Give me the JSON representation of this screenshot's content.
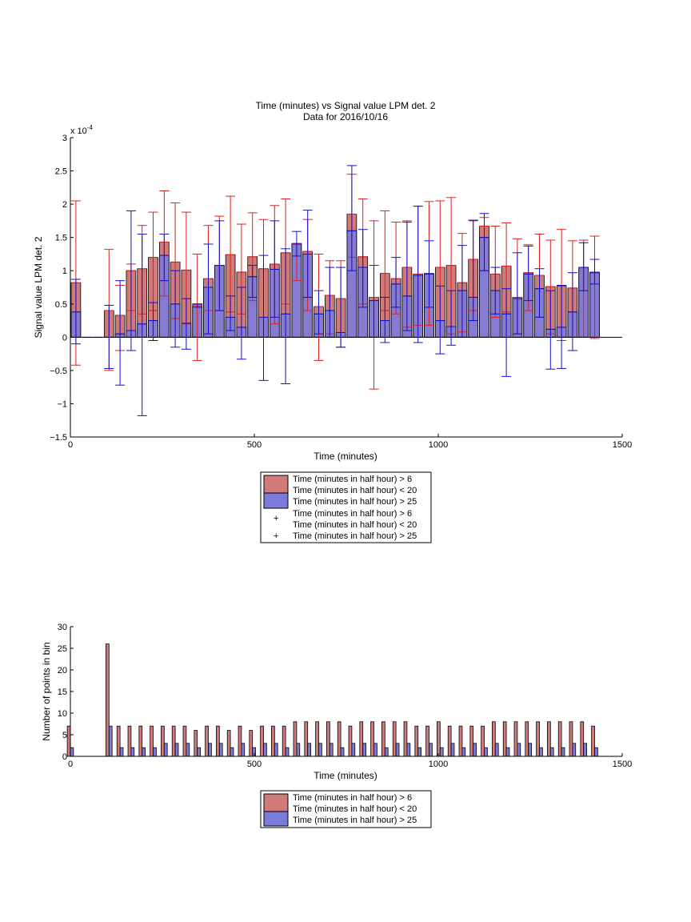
{
  "colors": {
    "red_fill": "#d07a7a",
    "red_line": "#dd2020",
    "blue_fill": "#7b7bdc",
    "blue_line": "#1010cc"
  },
  "chart_data": [
    {
      "type": "bar",
      "title": "Time (minutes) vs Signal value LPM det. 2",
      "subtitle": "Data for 2016/10/16",
      "xlabel": "Time (minutes)",
      "ylabel": "Signal value LPM det. 2",
      "y_exponent_label": "x 10",
      "y_exponent_power": "-4",
      "xlim": [
        0,
        1500
      ],
      "ylim": [
        -1.5,
        3
      ],
      "xticks": [
        "0",
        "500",
        "1000",
        "1500"
      ],
      "yticks": [
        "-1.5",
        "-1",
        "-0.5",
        "0",
        "0.5",
        "1",
        "1.5",
        "2",
        "2.5",
        "3"
      ],
      "x": [
        15,
        45,
        75,
        105,
        135,
        165,
        195,
        225,
        255,
        285,
        315,
        345,
        375,
        405,
        435,
        465,
        495,
        525,
        555,
        585,
        615,
        645,
        675,
        705,
        735,
        765,
        795,
        825,
        855,
        885,
        915,
        945,
        975,
        1005,
        1035,
        1065,
        1095,
        1125,
        1155,
        1185,
        1215,
        1245,
        1275,
        1305,
        1335,
        1365,
        1395,
        1425
      ],
      "series": [
        {
          "name": "Time (minutes in half hour) > 6",
          "name_line2": "Time (minutes in half hour) < 20",
          "values": [
            0.82,
            null,
            null,
            0.4,
            0.33,
            1.0,
            1.03,
            1.2,
            1.43,
            1.13,
            1.01,
            0.47,
            0.88,
            1.08,
            1.24,
            0.98,
            1.21,
            1.03,
            1.1,
            1.27,
            1.41,
            1.29,
            0.46,
            0.63,
            0.58,
            1.85,
            1.21,
            0.6,
            0.96,
            0.88,
            1.05,
            0.95,
            0.96,
            1.05,
            1.08,
            0.82,
            1.17,
            1.67,
            0.95,
            1.07,
            0.6,
            0.97,
            0.93,
            0.76,
            0.77,
            0.74,
            1.05,
            0.98
          ],
          "err_low": [
            -0.42,
            null,
            null,
            -0.5,
            -0.2,
            0.4,
            0.35,
            0.4,
            0.62,
            0.28,
            0.2,
            -0.35,
            0.4,
            0.4,
            0.38,
            0.35,
            0.55,
            0.3,
            0.2,
            0.5,
            0.85,
            0.4,
            -0.35,
            0.05,
            -0.15,
            1.2,
            0.5,
            -0.78,
            0.4,
            0.35,
            0.15,
            0.18,
            0.18,
            0.0,
            0.05,
            0.08,
            0.4,
            1.0,
            0.3,
            0.38,
            0.05,
            0.4,
            0.3,
            0.05,
            -0.05,
            0.0,
            0.0,
            -0.02
          ],
          "err_high": [
            2.05,
            null,
            null,
            1.32,
            0.78,
            1.1,
            1.68,
            1.88,
            2.2,
            2.02,
            1.88,
            1.25,
            1.68,
            1.82,
            2.12,
            1.7,
            1.87,
            1.77,
            1.98,
            2.08,
            1.4,
            1.77,
            1.25,
            1.15,
            1.15,
            2.45,
            2.08,
            1.75,
            1.9,
            1.73,
            1.75,
            1.97,
            2.04,
            2.05,
            2.1,
            1.56,
            1.75,
            1.8,
            1.67,
            1.72,
            1.48,
            1.39,
            1.55,
            1.46,
            1.62,
            1.45,
            1.46,
            1.52
          ]
        },
        {
          "name": "Time (minutes in half hour) > 25",
          "values": [
            0.38,
            0.0,
            0.0,
            0.0,
            0.05,
            0.1,
            0.2,
            0.25,
            1.23,
            0.5,
            0.21,
            0.5,
            0.75,
            1.08,
            0.3,
            0.15,
            0.91,
            0.3,
            1.02,
            0.35,
            1.4,
            1.25,
            0.35,
            0.4,
            0.07,
            1.6,
            1.05,
            0.55,
            0.25,
            0.8,
            0.62,
            0.93,
            0.95,
            0.25,
            0.16,
            0.7,
            0.6,
            1.5,
            0.7,
            0.35,
            0.58,
            0.95,
            0.73,
            0.12,
            0.15,
            0.38,
            1.05,
            0.97
          ],
          "err_low": [
            -0.1,
            0.0,
            0.0,
            -0.47,
            -0.72,
            -0.2,
            -1.18,
            -0.05,
            0.85,
            -0.15,
            -0.18,
            0.45,
            0.05,
            0.4,
            0.1,
            -0.33,
            0.6,
            -0.65,
            0.3,
            -0.7,
            1.22,
            0.6,
            0.05,
            0.0,
            -0.15,
            1.0,
            0.45,
            0.0,
            -0.08,
            0.45,
            0.1,
            -0.08,
            0.45,
            -0.25,
            -0.12,
            0.0,
            0.25,
            1.0,
            0.35,
            -0.59,
            0.05,
            0.55,
            0.3,
            -0.48,
            -0.47,
            -0.2,
            0.7,
            0.8
          ],
          "err_high": [
            0.87,
            0.0,
            0.0,
            0.48,
            0.85,
            1.9,
            1.55,
            0.52,
            1.55,
            1.0,
            0.58,
            0.5,
            1.4,
            1.75,
            0.62,
            0.75,
            1.08,
            1.23,
            1.75,
            1.33,
            1.59,
            1.91,
            0.7,
            1.05,
            1.05,
            2.58,
            1.62,
            1.08,
            0.6,
            1.2,
            1.73,
            1.97,
            1.45,
            0.77,
            0.7,
            1.38,
            1.76,
            1.86,
            1.05,
            0.73,
            1.27,
            1.37,
            1.03,
            0.7,
            0.78,
            0.97,
            1.42,
            1.17
          ]
        }
      ],
      "legend": {
        "position": "below",
        "entries": [
          "Time (minutes in half hour) > 6",
          "Time (minutes in half hour) < 20",
          "Time (minutes in half hour) > 25",
          "Time (minutes in half hour) > 6",
          "Time (minutes in half hour) < 20",
          "Time (minutes in half hour) > 25"
        ]
      }
    },
    {
      "type": "bar",
      "xlabel": "Time (minutes)",
      "ylabel": "Number of points in bin",
      "xlim": [
        0,
        1500
      ],
      "ylim": [
        0,
        30
      ],
      "xticks": [
        "0",
        "500",
        "1000",
        "1500"
      ],
      "yticks": [
        "0",
        "5",
        "10",
        "15",
        "20",
        "25",
        "30"
      ],
      "x": [
        0,
        15,
        45,
        75,
        105,
        135,
        165,
        195,
        225,
        255,
        285,
        315,
        345,
        375,
        405,
        435,
        465,
        495,
        525,
        555,
        585,
        615,
        645,
        675,
        705,
        735,
        765,
        795,
        825,
        855,
        885,
        915,
        945,
        975,
        1005,
        1035,
        1065,
        1095,
        1125,
        1155,
        1185,
        1215,
        1245,
        1275,
        1305,
        1335,
        1365,
        1395,
        1425
      ],
      "series": [
        {
          "name": "Time (minutes in half hour) > 6",
          "name_line2": "Time (minutes in half hour) < 20",
          "values": [
            7,
            0,
            0,
            0,
            26,
            7,
            7,
            7,
            7,
            7,
            7,
            7,
            6,
            7,
            7,
            6,
            7,
            6,
            7,
            7,
            7,
            8,
            8,
            8,
            8,
            8,
            7,
            8,
            8,
            8,
            8,
            8,
            7,
            7,
            8,
            7,
            7,
            7,
            7,
            8,
            8,
            8,
            8,
            8,
            8,
            8,
            8,
            8,
            7
          ]
        },
        {
          "name": "Time (minutes in half hour) > 25",
          "values": [
            2,
            0,
            0,
            0,
            7,
            2,
            2,
            2,
            2,
            3,
            3,
            3,
            2,
            3,
            3,
            2,
            3,
            2,
            3,
            3,
            2,
            3,
            3,
            3,
            3,
            2,
            3,
            3,
            3,
            2,
            3,
            3,
            2,
            3,
            2,
            3,
            2,
            3,
            2,
            3,
            2,
            3,
            3,
            2,
            2,
            2,
            3,
            3,
            2
          ]
        }
      ],
      "legend": {
        "position": "below",
        "entries": [
          "Time (minutes in half hour) > 6",
          "Time (minutes in half hour) < 20",
          "Time (minutes in half hour) > 25"
        ]
      }
    }
  ]
}
